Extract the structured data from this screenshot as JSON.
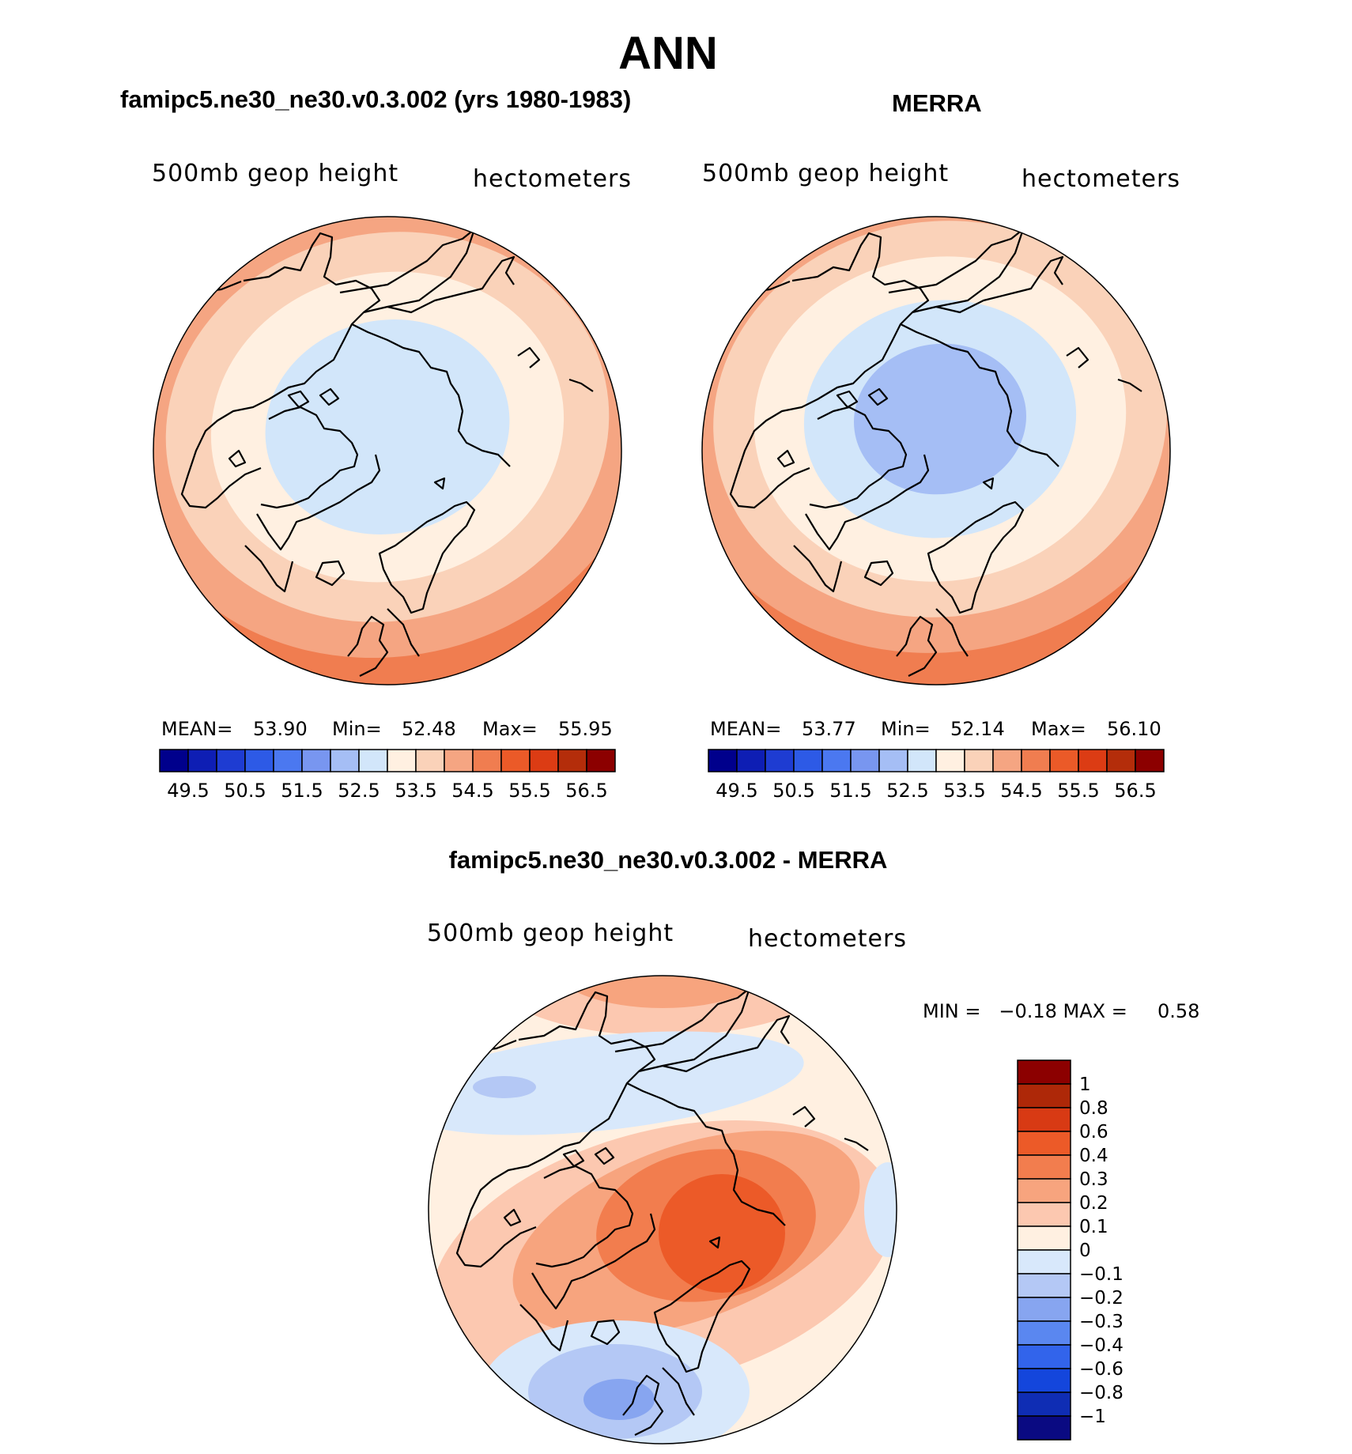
{
  "title": "ANN",
  "panels": {
    "left": {
      "title": "famipc5.ne30_ne30.v0.3.002 (yrs 1980-1983)",
      "variable": "500mb geop height",
      "units": "hectometers",
      "mean_label": "MEAN=",
      "mean": "53.90",
      "min_label": "Min=",
      "min": "52.48",
      "max_label": "Max=",
      "max": "55.95"
    },
    "right": {
      "title": "MERRA",
      "variable": "500mb geop height",
      "units": "hectometers",
      "mean_label": "MEAN=",
      "mean": "53.77",
      "min_label": "Min=",
      "min": "52.14",
      "max_label": "Max=",
      "max": "56.10"
    },
    "diff": {
      "title": "famipc5.ne30_ne30.v0.3.002 - MERRA",
      "variable": "500mb geop height",
      "units": "hectometers",
      "minmax_text": "MIN =   −0.18 MAX =     0.58"
    }
  },
  "colors": {
    "abs_scale": [
      "#00008c",
      "#0e1eb4",
      "#1e3cd2",
      "#2d5ae6",
      "#4b78f0",
      "#7896f0",
      "#a5bef5",
      "#d2e6fa",
      "#fff0e1",
      "#fad2b9",
      "#f5a582",
      "#f07d50",
      "#eb5a28",
      "#dc3c14",
      "#b42d0a",
      "#8c0000"
    ],
    "diff_scale": [
      "#0a0a82",
      "#0f2db4",
      "#1446dc",
      "#3264eb",
      "#5a87f0",
      "#87a5f0",
      "#b4c8f5",
      "#d8e8fb",
      "#fff0e1",
      "#fcc8b0",
      "#f7a47e",
      "#f27d4e",
      "#ec5a28",
      "#d83a14",
      "#ae2808",
      "#8c0000"
    ],
    "coast": "#000000"
  },
  "chart_data": [
    {
      "type": "heatmap",
      "projection": "polar-stereographic (north pole)",
      "title": "famipc5.ne30_ne30.v0.3.002 (yrs 1980-1983)",
      "variable": "500mb geop height",
      "units": "hectometers",
      "stats": {
        "mean": 53.9,
        "min": 52.48,
        "max": 55.95
      },
      "colorbar_levels": [
        49.5,
        50,
        50.5,
        51,
        51.5,
        52,
        52.5,
        53,
        53.5,
        54,
        54.5,
        55,
        55.5,
        56,
        56.5
      ],
      "colorbar_labels": [
        "49.5",
        "50.5",
        "51.5",
        "52.5",
        "53.5",
        "54.5",
        "55.5",
        "56.5"
      ],
      "fields": {
        "pole_value": 52.5,
        "edge_value": 56.0
      }
    },
    {
      "type": "heatmap",
      "projection": "polar-stereographic (north pole)",
      "title": "MERRA",
      "variable": "500mb geop height",
      "units": "hectometers",
      "stats": {
        "mean": 53.77,
        "min": 52.14,
        "max": 56.1
      },
      "colorbar_levels": [
        49.5,
        50,
        50.5,
        51,
        51.5,
        52,
        52.5,
        53,
        53.5,
        54,
        54.5,
        55,
        55.5,
        56,
        56.5
      ],
      "colorbar_labels": [
        "49.5",
        "50.5",
        "51.5",
        "52.5",
        "53.5",
        "54.5",
        "55.5",
        "56.5"
      ],
      "fields": {
        "pole_value": 52.2,
        "edge_value": 56.1
      }
    },
    {
      "type": "heatmap",
      "projection": "polar-stereographic (north pole)",
      "title": "famipc5.ne30_ne30.v0.3.002 - MERRA",
      "variable": "500mb geop height",
      "units": "hectometers",
      "stats": {
        "min": -0.18,
        "max": 0.58
      },
      "colorbar_levels": [
        -1,
        -0.8,
        -0.6,
        -0.4,
        -0.3,
        -0.2,
        -0.1,
        0,
        0.1,
        0.2,
        0.3,
        0.4,
        0.6,
        0.8,
        1
      ],
      "colorbar_labels": [
        "1",
        "0.8",
        "0.6",
        "0.4",
        "0.3",
        "0.2",
        "0.1",
        "0",
        "−0.1",
        "−0.2",
        "−0.3",
        "−0.4",
        "−0.6",
        "−0.8",
        "−1"
      ]
    }
  ]
}
